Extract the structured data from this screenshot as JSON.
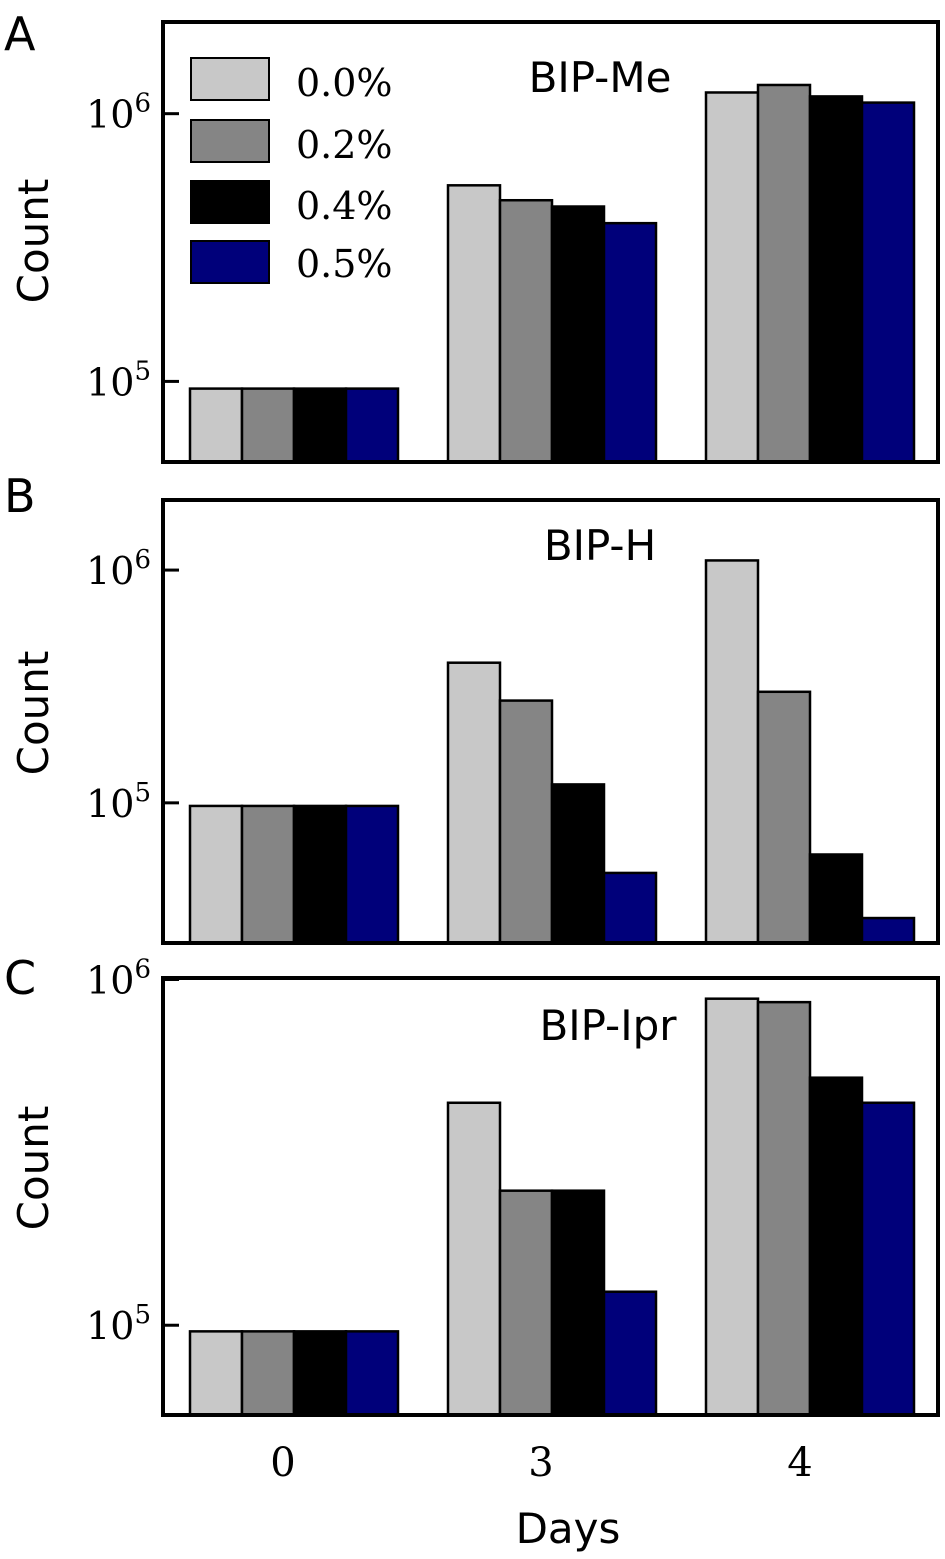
{
  "x_axis": {
    "label": "Days",
    "tick_labels": [
      "0",
      "3",
      "4"
    ]
  },
  "legend": {
    "placement": "top-left of panel A",
    "entries": [
      {
        "label": "0.0%",
        "color": "#c8c8c8"
      },
      {
        "label": "0.2%",
        "color": "#858585"
      },
      {
        "label": "0.4%",
        "color": "#000000"
      },
      {
        "label": "0.5%",
        "color": "#00007a"
      }
    ]
  },
  "chart_data": [
    {
      "type": "bar",
      "panel_letter": "A",
      "title": "BIP-Me",
      "ylabel": "Count",
      "yscale": "log",
      "ylim": [
        50000,
        2200000
      ],
      "ytick_labels": [
        {
          "base": "10",
          "exp": "5",
          "value": 100000
        },
        {
          "base": "10",
          "exp": "6",
          "value": 1000000
        }
      ],
      "categories": [
        "0",
        "3",
        "4"
      ],
      "series": [
        {
          "name": "0.0%",
          "values": [
            94000,
            540000,
            1200000
          ]
        },
        {
          "name": "0.2%",
          "values": [
            94000,
            475000,
            1280000
          ]
        },
        {
          "name": "0.4%",
          "values": [
            94000,
            450000,
            1160000
          ]
        },
        {
          "name": "0.5%",
          "values": [
            94000,
            390000,
            1100000
          ]
        }
      ]
    },
    {
      "type": "bar",
      "panel_letter": "B",
      "title": "BIP-H",
      "ylabel": "Count",
      "yscale": "log",
      "ylim": [
        25000,
        2000000
      ],
      "ytick_labels": [
        {
          "base": "10",
          "exp": "5",
          "value": 100000
        },
        {
          "base": "10",
          "exp": "6",
          "value": 1000000
        }
      ],
      "categories": [
        "0",
        "3",
        "4"
      ],
      "series": [
        {
          "name": "0.0%",
          "values": [
            97000,
            400000,
            1100000
          ]
        },
        {
          "name": "0.2%",
          "values": [
            97000,
            275000,
            300000
          ]
        },
        {
          "name": "0.4%",
          "values": [
            97000,
            120000,
            60000
          ]
        },
        {
          "name": "0.5%",
          "values": [
            97000,
            50000,
            32000
          ]
        }
      ]
    },
    {
      "type": "bar",
      "panel_letter": "C",
      "title": "BIP-Ipr",
      "ylabel": "Count",
      "yscale": "log",
      "ylim": [
        55000,
        1010000
      ],
      "ytick_labels": [
        {
          "base": "10",
          "exp": "5",
          "value": 100000
        },
        {
          "base": "10",
          "exp": "6",
          "value": 1000000
        }
      ],
      "categories": [
        "0",
        "3",
        "4"
      ],
      "series": [
        {
          "name": "0.0%",
          "values": [
            96000,
            440000,
            880000
          ]
        },
        {
          "name": "0.2%",
          "values": [
            96000,
            245000,
            860000
          ]
        },
        {
          "name": "0.4%",
          "values": [
            96000,
            245000,
            520000
          ]
        },
        {
          "name": "0.5%",
          "values": [
            96000,
            125000,
            440000
          ]
        }
      ]
    }
  ]
}
